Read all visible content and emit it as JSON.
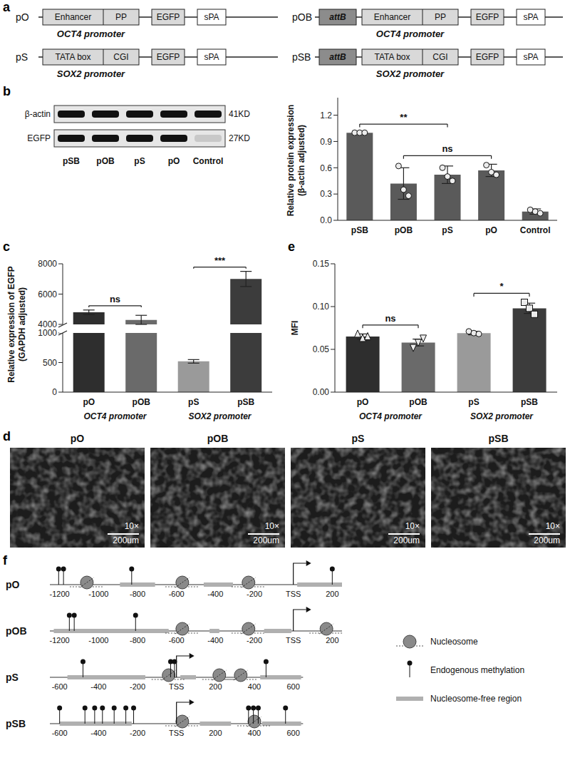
{
  "constructs": {
    "panel": "a",
    "items": [
      {
        "name": "pO",
        "promoter": [
          "Enhancer",
          "PP"
        ],
        "promoter_label": "OCT4 promoter",
        "reporter": "EGFP",
        "polyA": "sPA"
      },
      {
        "name": "pOB",
        "insert": "attB",
        "promoter": [
          "Enhancer",
          "PP"
        ],
        "promoter_label": "OCT4 promoter",
        "reporter": "EGFP",
        "polyA": "sPA"
      },
      {
        "name": "pS",
        "promoter": [
          "TATA box",
          "CGI"
        ],
        "promoter_label": "SOX2 promoter",
        "reporter": "EGFP",
        "polyA": "sPA"
      },
      {
        "name": "pSB",
        "insert": "attB",
        "promoter": [
          "TATA box",
          "CGI"
        ],
        "promoter_label": "SOX2 promoter",
        "reporter": "EGFP",
        "polyA": "sPA"
      }
    ]
  },
  "blot": {
    "lanes": [
      "pSB",
      "pOB",
      "pS",
      "pO",
      "Control"
    ],
    "rows": [
      {
        "label": "β-actin",
        "size": "41KD"
      },
      {
        "label": "EGFP",
        "size": "27KD",
        "faint_lanes": [
          "Control"
        ]
      }
    ]
  },
  "chart_data": [
    {
      "panel": "b",
      "type": "bar",
      "categories": [
        "pSB",
        "pOB",
        "pS",
        "pO",
        "Control"
      ],
      "values": [
        1.0,
        0.42,
        0.52,
        0.57,
        0.1
      ],
      "errors": [
        0,
        0.18,
        0.1,
        0.07,
        0.03
      ],
      "points": [
        {
          "marker": "circle",
          "values": [
            1,
            1,
            1
          ]
        },
        {
          "marker": "circle",
          "values": [
            0.62,
            0.35,
            0.28
          ]
        },
        {
          "marker": "circle",
          "values": [
            0.6,
            0.5,
            0.45
          ]
        },
        {
          "marker": "circle",
          "values": [
            0.63,
            0.55,
            0.52
          ]
        },
        {
          "marker": "circle",
          "values": [
            0.12,
            0.1,
            0.08
          ]
        }
      ],
      "color": "#5a5a5a",
      "y_label": "Relative protein expression (β-actin adjusted)",
      "ylim": [
        0,
        1.4
      ],
      "yticks": [
        {
          "value": 0,
          "label": "0.0"
        },
        0.3,
        0.6,
        0.9,
        1.2
      ],
      "significance": [
        {
          "from": "pSB",
          "to": "pS",
          "label": "**"
        },
        {
          "from": "pOB",
          "to": "pO",
          "label": "ns"
        }
      ]
    },
    {
      "panel": "c",
      "type": "bar",
      "categories": [
        "pO",
        "pOB",
        "pS",
        "pSB"
      ],
      "groups": [
        {
          "label": "OCT4 promoter",
          "categories": [
            "pO",
            "pOB"
          ]
        },
        {
          "label": "SOX2 promoter",
          "categories": [
            "pS",
            "pSB"
          ]
        }
      ],
      "values": [
        4800,
        4300,
        520,
        7000
      ],
      "errors": [
        150,
        300,
        30,
        500
      ],
      "colors": [
        "#2e2e2e",
        "#6a6a6a",
        "#9a9a9a",
        "#3c3c3c"
      ],
      "y_label": "Relative expression of EGFP (GAPDH adjusted)",
      "ylim": [
        0,
        8000
      ],
      "yticks": [
        0,
        500,
        1000,
        4000,
        6000,
        8000
      ],
      "y_break": [
        1000,
        4000
      ],
      "significance": [
        {
          "from": "pO",
          "to": "pOB",
          "label": "ns"
        },
        {
          "from": "pS",
          "to": "pSB",
          "label": "***"
        }
      ]
    },
    {
      "panel": "e",
      "type": "bar",
      "categories": [
        "pO",
        "pOB",
        "pS",
        "pSB"
      ],
      "groups": [
        {
          "label": "OCT4 promoter",
          "categories": [
            "pO",
            "pOB"
          ]
        },
        {
          "label": "SOX2 promoter",
          "categories": [
            "pS",
            "pSB"
          ]
        }
      ],
      "values": [
        0.065,
        0.058,
        0.069,
        0.098
      ],
      "errors": [
        0.003,
        0.004,
        0.002,
        0.006
      ],
      "colors": [
        "#2e2e2e",
        "#6a6a6a",
        "#9a9a9a",
        "#3c3c3c"
      ],
      "points": [
        {
          "marker": "triangle",
          "values": [
            0.068,
            0.063,
            0.065
          ]
        },
        {
          "marker": "triangle_down",
          "values": [
            0.052,
            0.058,
            0.063
          ]
        },
        {
          "marker": "circle",
          "values": [
            0.071,
            0.069,
            0.068
          ]
        },
        {
          "marker": "square",
          "values": [
            0.105,
            0.098,
            0.091
          ]
        }
      ],
      "y_label": "MFI",
      "ylim": [
        0,
        0.15
      ],
      "yticks": [
        {
          "value": 0,
          "label": "0.00"
        },
        {
          "value": 0.05,
          "label": "0.05"
        },
        {
          "value": 0.1,
          "label": "0.10"
        },
        {
          "value": 0.15,
          "label": "0.15"
        }
      ],
      "significance": [
        {
          "from": "pO",
          "to": "pOB",
          "label": "ns"
        },
        {
          "from": "pS",
          "to": "pSB",
          "label": "*"
        }
      ]
    }
  ],
  "micrographs": {
    "panel": "d",
    "items": [
      "pO",
      "pOB",
      "pS",
      "pSB"
    ],
    "magnification": "10×",
    "scale_bar": "200um"
  },
  "nucleosome_maps": {
    "panel": "f",
    "legend": {
      "nucleosome": "Nucleosome",
      "methylation": "Endogenous methylation",
      "nfr": "Nucleosome-free region"
    },
    "tracks": [
      {
        "name": "pO",
        "xlim": [
          -1250,
          250
        ],
        "xticks": [
          -1200,
          -1000,
          -800,
          -600,
          -400,
          -200,
          {
            "value": 0,
            "label": "TSS"
          },
          200
        ],
        "tss": 0,
        "methylation": [
          -1205,
          -1180,
          -830,
          200
        ],
        "nucleosomes": [
          -1060,
          -570,
          -230
        ],
        "nucleosome_free_regions": [
          [
            -890,
            -710
          ],
          [
            -460,
            -310
          ],
          [
            20,
            250
          ]
        ]
      },
      {
        "name": "pOB",
        "xlim": [
          -1250,
          250
        ],
        "xticks": [
          -1200,
          -1000,
          -800,
          -600,
          -400,
          -200,
          {
            "value": 0,
            "label": "TSS"
          },
          200
        ],
        "tss": 0,
        "methylation": [
          -1150,
          -1125,
          -810
        ],
        "nucleosomes": [
          -570,
          -230,
          170
        ],
        "nucleosome_free_regions": [
          [
            -1230,
            -640
          ],
          [
            -430,
            -380
          ],
          [
            -150,
            -10
          ]
        ]
      },
      {
        "name": "pS",
        "xlim": [
          -650,
          650
        ],
        "xticks": [
          -600,
          -400,
          -200,
          {
            "value": 0,
            "label": "TSS"
          },
          200,
          400,
          600
        ],
        "tss": 0,
        "methylation": [
          -480,
          -30,
          -10,
          460
        ],
        "nucleosomes": [
          -40,
          220,
          330
        ],
        "nucleosome_free_regions": [
          [
            -560,
            -160
          ],
          [
            20,
            100
          ],
          [
            430,
            640
          ]
        ]
      },
      {
        "name": "pSB",
        "xlim": [
          -650,
          650
        ],
        "xticks": [
          -600,
          -400,
          -200,
          {
            "value": 0,
            "label": "TSS"
          },
          200,
          400,
          600
        ],
        "tss": 0,
        "methylation": [
          -600,
          -470,
          -420,
          -380,
          -320,
          -260,
          -220,
          370,
          395,
          420,
          560
        ],
        "nucleosomes": [
          30,
          400
        ],
        "nucleosome_free_regions": [
          [
            -600,
            -230
          ],
          [
            120,
            280
          ],
          [
            440,
            640
          ]
        ]
      }
    ]
  }
}
